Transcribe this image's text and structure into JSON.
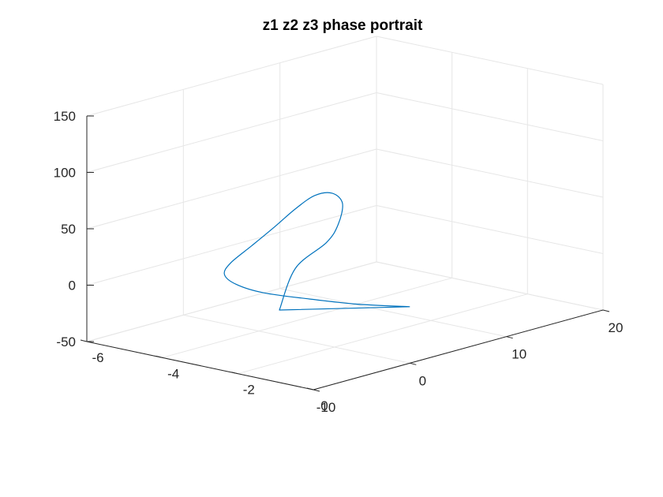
{
  "chart_data": {
    "type": "line",
    "plot_kind": "3d-line",
    "title": "z1 z2 z3 phase portrait",
    "xlabel": "",
    "ylabel": "",
    "zlabel": "",
    "grid": true,
    "xlim": [
      -6,
      0
    ],
    "ylim": [
      -10,
      20
    ],
    "zlim": [
      -50,
      150
    ],
    "x_ticks": [
      -6,
      -4,
      -2,
      0
    ],
    "y_ticks": [
      -10,
      0,
      10,
      20
    ],
    "z_ticks": [
      -50,
      0,
      50,
      100,
      150
    ],
    "x_tick_labels": [
      "-6",
      "-4",
      "-2",
      "0"
    ],
    "y_tick_labels": [
      "-10",
      "0",
      "10",
      "20"
    ],
    "z_tick_labels": [
      "-50",
      "0",
      "50",
      "100",
      "150"
    ],
    "series_color": "#0072bd",
    "series": [
      {
        "x": [
          0,
          -1.0,
          -2.0,
          -3.0,
          -3.8,
          -4.4,
          -4.75,
          -4.95,
          -5.1,
          -5.2,
          -5.2,
          -5.0,
          -4.6,
          -4.2,
          -4.0,
          -3.8,
          -3.61,
          0
        ],
        "y": [
          0,
          -1.6,
          -2.6,
          -3.4,
          -3.1,
          -2.0,
          0.0,
          3.0,
          6.0,
          8.5,
          10.5,
          11.5,
          11.0,
          9.0,
          7.0,
          3.0,
          0.6,
          0
        ],
        "z": [
          0,
          -1.0,
          -1.2,
          -1.0,
          0.0,
          2.0,
          5.0,
          12.0,
          21.0,
          30.0,
          37.0,
          38.0,
          33.0,
          22.0,
          12.0,
          0.0,
          -30.0,
          0
        ]
      }
    ]
  }
}
